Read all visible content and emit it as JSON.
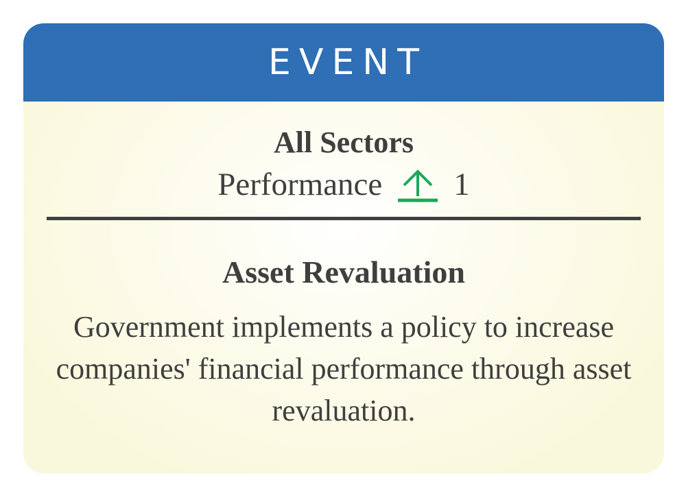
{
  "card": {
    "type_label": "EVENT",
    "sector": "All Sectors",
    "effect": {
      "stat": "Performance",
      "direction": "up",
      "icon": "arrow-up-icon",
      "value": "1"
    },
    "title": "Asset Revaluation",
    "description": "Government implements a policy to increase companies' financial performance through asset revaluation."
  },
  "colors": {
    "header": "#2e6fb5",
    "background": "#faf8dc",
    "up_arrow": "#1aa85a",
    "text": "#3f3f3f"
  }
}
